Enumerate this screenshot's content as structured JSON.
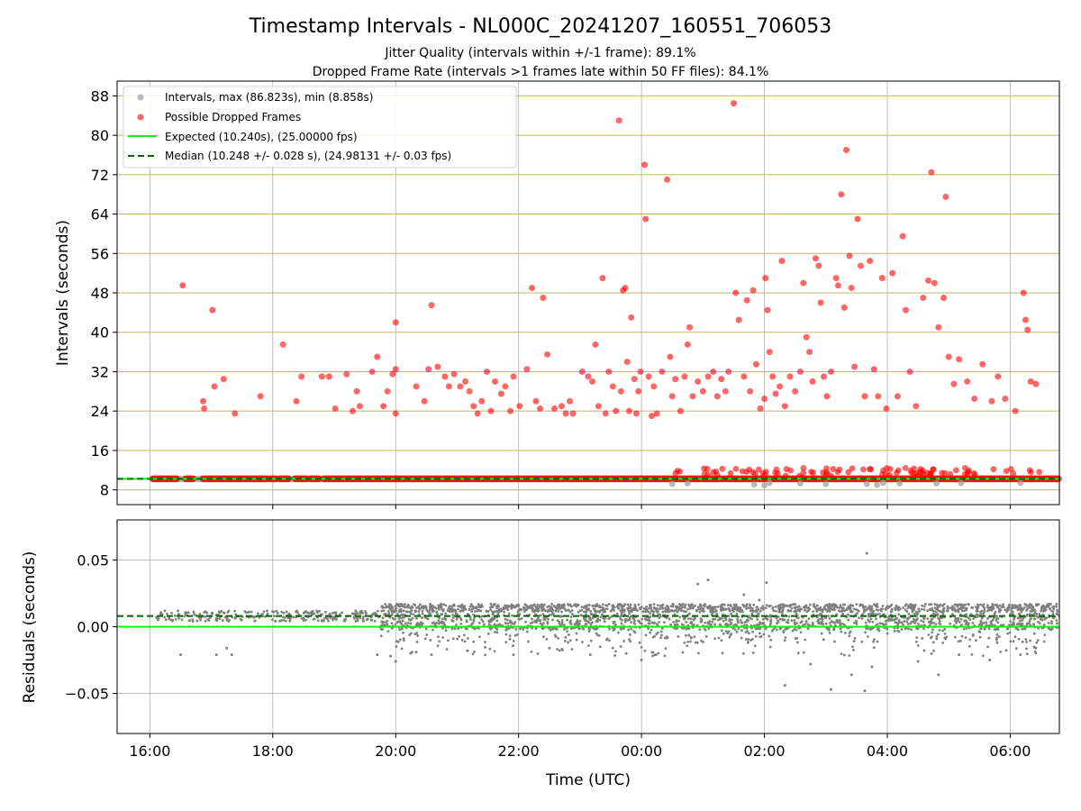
{
  "title": "Timestamp Intervals - NL000C_20241207_160551_706053",
  "subtitle_line1": "Jitter Quality (intervals within +/-1 frame): 89.1%",
  "subtitle_line2": "Dropped Frame Rate (intervals >1 frames late within 50 FF files): 84.1%",
  "colors": {
    "intervals": "#a0a0a0",
    "dropped": "#ff0000",
    "expected": "#00ff00",
    "median": "#006400",
    "residuals": "#808080",
    "hgrid_top": "#c8b469",
    "grid": "#b0b0b0"
  },
  "chart_data": [
    {
      "type": "scatter",
      "ylabel": "Intervals (seconds)",
      "ylim": [
        5,
        91
      ],
      "xlim": [
        "15:28",
        "06:48"
      ],
      "yticks": [
        8,
        16,
        24,
        32,
        40,
        48,
        56,
        64,
        72,
        80,
        88
      ],
      "ytick_labels": [
        "8",
        "16",
        "24",
        "32",
        "40",
        "48",
        "56",
        "64",
        "72",
        "80",
        "88"
      ],
      "grid": true,
      "legend_position": "top-left",
      "legend": [
        "Intervals, max (86.823s), min (8.858s)",
        "Possible Dropped Frames",
        "Expected (10.240s), (25.00000 fps)",
        "Median (10.248 +/- 0.028 s), (24.98131 +/- 0.03 fps)"
      ],
      "expected_y": 10.24,
      "median_y": 10.248,
      "dropped_frames": [
        [
          "16:32",
          49.5
        ],
        [
          "16:52",
          26.0
        ],
        [
          "16:53",
          24.5
        ],
        [
          "17:01",
          44.5
        ],
        [
          "17:03",
          29.0
        ],
        [
          "17:12",
          30.5
        ],
        [
          "17:23",
          23.5
        ],
        [
          "17:48",
          27.0
        ],
        [
          "18:10",
          37.5
        ],
        [
          "18:23",
          26.0
        ],
        [
          "18:28",
          31.0
        ],
        [
          "18:48",
          31.0
        ],
        [
          "18:55",
          31.0
        ],
        [
          "19:01",
          24.5
        ],
        [
          "19:12",
          31.5
        ],
        [
          "19:18",
          24.0
        ],
        [
          "19:22",
          28.0
        ],
        [
          "19:25",
          25.0
        ],
        [
          "19:37",
          32.0
        ],
        [
          "19:42",
          35.0
        ],
        [
          "19:48",
          25.0
        ],
        [
          "19:52",
          28.0
        ],
        [
          "19:57",
          31.5
        ],
        [
          "20:00",
          42.0
        ],
        [
          "20:00",
          23.5
        ],
        [
          "20:00",
          32.5
        ],
        [
          "20:20",
          29.0
        ],
        [
          "20:28",
          26.0
        ],
        [
          "20:32",
          32.5
        ],
        [
          "20:35",
          45.5
        ],
        [
          "20:41",
          33.0
        ],
        [
          "20:48",
          31.0
        ],
        [
          "20:52",
          29.0
        ],
        [
          "20:57",
          31.5
        ],
        [
          "21:03",
          29.0
        ],
        [
          "21:08",
          30.0
        ],
        [
          "21:12",
          28.0
        ],
        [
          "21:16",
          25.0
        ],
        [
          "21:20",
          23.5
        ],
        [
          "21:24",
          26.0
        ],
        [
          "21:29",
          32.0
        ],
        [
          "21:33",
          24.0
        ],
        [
          "21:37",
          30.0
        ],
        [
          "21:43",
          27.5
        ],
        [
          "21:47",
          29.0
        ],
        [
          "21:52",
          24.0
        ],
        [
          "21:55",
          31.0
        ],
        [
          "22:01",
          25.0
        ],
        [
          "22:08",
          32.5
        ],
        [
          "22:13",
          49.0
        ],
        [
          "22:17",
          26.0
        ],
        [
          "22:21",
          24.5
        ],
        [
          "22:24",
          47.0
        ],
        [
          "22:28",
          35.5
        ],
        [
          "22:35",
          24.5
        ],
        [
          "22:42",
          25.0
        ],
        [
          "22:46",
          23.5
        ],
        [
          "22:50",
          26.0
        ],
        [
          "22:53",
          23.5
        ],
        [
          "23:02",
          32.0
        ],
        [
          "23:08",
          31.0
        ],
        [
          "23:12",
          30.0
        ],
        [
          "23:15",
          37.5
        ],
        [
          "23:18",
          25.0
        ],
        [
          "23:22",
          51.0
        ],
        [
          "23:25",
          23.5
        ],
        [
          "23:28",
          32.0
        ],
        [
          "23:32",
          29.0
        ],
        [
          "23:35",
          24.0
        ],
        [
          "23:38",
          83.0
        ],
        [
          "23:40",
          28.0
        ],
        [
          "23:42",
          48.5
        ],
        [
          "23:44",
          49.0
        ],
        [
          "23:46",
          34.0
        ],
        [
          "23:48",
          24.0
        ],
        [
          "23:50",
          43.0
        ],
        [
          "23:53",
          30.5
        ],
        [
          "23:55",
          23.5
        ],
        [
          "23:57",
          28.0
        ],
        [
          "23:59",
          32.0
        ],
        [
          "00:03",
          74.0
        ],
        [
          "00:04",
          63.0
        ],
        [
          "00:07",
          31.0
        ],
        [
          "00:10",
          23.0
        ],
        [
          "00:12",
          29.0
        ],
        [
          "00:15",
          23.5
        ],
        [
          "00:20",
          32.0
        ],
        [
          "00:25",
          71.0
        ],
        [
          "00:28",
          35.0
        ],
        [
          "00:30",
          27.0
        ],
        [
          "00:33",
          30.5
        ],
        [
          "00:38",
          24.0
        ],
        [
          "00:42",
          31.0
        ],
        [
          "00:45",
          37.5
        ],
        [
          "00:47",
          41.0
        ],
        [
          "00:50",
          27.0
        ],
        [
          "00:55",
          30.0
        ],
        [
          "01:00",
          28.0
        ],
        [
          "01:05",
          31.0
        ],
        [
          "01:10",
          32.0
        ],
        [
          "01:14",
          27.0
        ],
        [
          "01:18",
          30.5
        ],
        [
          "01:22",
          28.0
        ],
        [
          "01:25",
          32.0
        ],
        [
          "01:30",
          86.5
        ],
        [
          "01:32",
          48.0
        ],
        [
          "01:35",
          42.5
        ],
        [
          "01:40",
          31.0
        ],
        [
          "01:43",
          46.5
        ],
        [
          "01:46",
          28.0
        ],
        [
          "01:49",
          48.5
        ],
        [
          "01:52",
          33.5
        ],
        [
          "01:56",
          24.5
        ],
        [
          "02:00",
          26.5
        ],
        [
          "02:01",
          51.0
        ],
        [
          "02:03",
          44.5
        ],
        [
          "02:05",
          36.0
        ],
        [
          "02:08",
          31.0
        ],
        [
          "02:11",
          27.5
        ],
        [
          "02:15",
          29.0
        ],
        [
          "02:17",
          54.5
        ],
        [
          "02:20",
          25.0
        ],
        [
          "02:25",
          31.0
        ],
        [
          "02:30",
          28.0
        ],
        [
          "02:35",
          32.0
        ],
        [
          "02:38",
          50.0
        ],
        [
          "02:41",
          39.0
        ],
        [
          "02:44",
          36.0
        ],
        [
          "02:47",
          30.0
        ],
        [
          "02:50",
          55.0
        ],
        [
          "02:53",
          53.5
        ],
        [
          "02:55",
          46.0
        ],
        [
          "02:58",
          31.0
        ],
        [
          "03:01",
          27.0
        ],
        [
          "03:05",
          32.0
        ],
        [
          "03:10",
          51.0
        ],
        [
          "03:12",
          49.5
        ],
        [
          "03:15",
          68.0
        ],
        [
          "03:18",
          45.0
        ],
        [
          "03:20",
          77.0
        ],
        [
          "03:23",
          55.5
        ],
        [
          "03:25",
          49.0
        ],
        [
          "03:28",
          33.0
        ],
        [
          "03:31",
          63.0
        ],
        [
          "03:34",
          53.5
        ],
        [
          "03:38",
          27.0
        ],
        [
          "03:43",
          54.5
        ],
        [
          "03:47",
          32.5
        ],
        [
          "03:51",
          27.0
        ],
        [
          "03:55",
          51.0
        ],
        [
          "03:59",
          24.5
        ],
        [
          "04:05",
          52.0
        ],
        [
          "04:10",
          27.0
        ],
        [
          "04:15",
          59.5
        ],
        [
          "04:18",
          44.5
        ],
        [
          "04:22",
          32.0
        ],
        [
          "04:28",
          25.0
        ],
        [
          "04:35",
          47.0
        ],
        [
          "04:40",
          50.5
        ],
        [
          "04:43",
          72.5
        ],
        [
          "04:46",
          50.0
        ],
        [
          "04:50",
          41.0
        ],
        [
          "04:55",
          47.0
        ],
        [
          "04:57",
          67.5
        ],
        [
          "05:00",
          35.0
        ],
        [
          "05:05",
          29.5
        ],
        [
          "05:10",
          34.5
        ],
        [
          "05:18",
          30.0
        ],
        [
          "05:25",
          26.5
        ],
        [
          "05:33",
          33.5
        ],
        [
          "05:42",
          26.0
        ],
        [
          "05:48",
          31.0
        ],
        [
          "05:55",
          26.5
        ],
        [
          "06:05",
          24.0
        ],
        [
          "06:13",
          48.0
        ],
        [
          "06:15",
          42.5
        ],
        [
          "06:17",
          40.5
        ],
        [
          "06:20",
          30.0
        ],
        [
          "06:25",
          29.5
        ]
      ],
      "baseline_segments": [
        [
          "16:03",
          "16:26"
        ],
        [
          "16:35",
          "16:42"
        ],
        [
          "16:52",
          "17:55"
        ],
        [
          "17:58",
          "18:03"
        ],
        [
          "18:07",
          "18:15"
        ],
        [
          "18:22",
          "18:33"
        ],
        [
          "18:37",
          "18:45"
        ],
        [
          "18:50",
          "20:00"
        ],
        [
          "20:00",
          "06:48"
        ]
      ],
      "low_points": [
        [
          "00:30",
          9.2
        ],
        [
          "00:45",
          9.3
        ],
        [
          "01:50",
          9.1
        ],
        [
          "02:00",
          8.9
        ],
        [
          "02:05",
          9.4
        ],
        [
          "02:35",
          9.3
        ],
        [
          "03:00",
          9.2
        ],
        [
          "03:40",
          9.2
        ],
        [
          "03:50",
          9.0
        ],
        [
          "03:56",
          9.4
        ],
        [
          "04:12",
          9.3
        ],
        [
          "04:48",
          9.3
        ],
        [
          "05:12",
          9.4
        ],
        [
          "06:10",
          9.4
        ]
      ]
    },
    {
      "type": "scatter",
      "xlabel": "Time (UTC)",
      "ylabel": "Residuals (seconds)",
      "ylim": [
        -0.08,
        0.08
      ],
      "yticks": [
        -0.05,
        0.0,
        0.05
      ],
      "ytick_labels": [
        "−0.05",
        "0.00",
        "0.05"
      ],
      "xtick_labels": [
        "16:00",
        "18:00",
        "20:00",
        "22:00",
        "00:00",
        "02:00",
        "04:00",
        "06:00"
      ],
      "grid": true,
      "expected_y": 0.0,
      "median_y": 0.008,
      "outliers": [
        [
          "16:30",
          -0.021
        ],
        [
          "17:05",
          -0.021
        ],
        [
          "17:15",
          -0.016
        ],
        [
          "17:20",
          -0.021
        ],
        [
          "19:42",
          -0.021
        ],
        [
          "19:55",
          -0.022
        ],
        [
          "20:00",
          -0.026
        ],
        [
          "20:20",
          -0.019
        ],
        [
          "20:35",
          -0.021
        ],
        [
          "21:10",
          -0.018
        ],
        [
          "21:55",
          -0.021
        ],
        [
          "22:30",
          -0.016
        ],
        [
          "23:10",
          -0.021
        ],
        [
          "23:45",
          -0.02
        ],
        [
          "00:00",
          -0.025
        ],
        [
          "00:55",
          0.032
        ],
        [
          "01:05",
          0.035
        ],
        [
          "01:40",
          0.024
        ],
        [
          "01:55",
          0.02
        ],
        [
          "02:02",
          0.033
        ],
        [
          "02:20",
          -0.044
        ],
        [
          "02:45",
          -0.028
        ],
        [
          "03:05",
          -0.047
        ],
        [
          "03:25",
          -0.036
        ],
        [
          "03:38",
          -0.048
        ],
        [
          "03:40",
          0.055
        ],
        [
          "03:45",
          -0.03
        ],
        [
          "04:30",
          -0.026
        ],
        [
          "04:50",
          -0.036
        ],
        [
          "05:10",
          -0.021
        ],
        [
          "05:40",
          -0.025
        ],
        [
          "06:10",
          -0.021
        ],
        [
          "06:25",
          -0.016
        ]
      ]
    }
  ]
}
